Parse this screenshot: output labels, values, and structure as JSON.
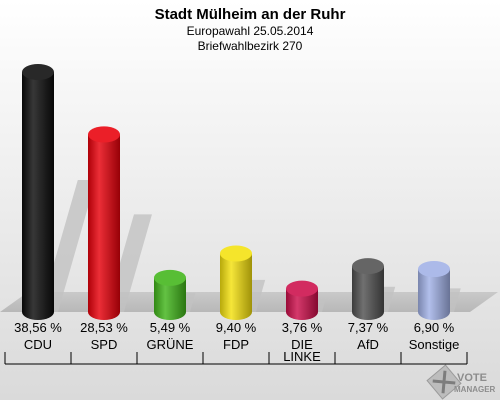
{
  "chart_data": {
    "type": "bar",
    "title": "Stadt Mülheim an der Ruhr",
    "subtitle": "Europawahl 25.05.2014",
    "subtitle2": "Briefwahlbezirk 270",
    "categories": [
      "CDU",
      "SPD",
      "GRÜNE",
      "FDP",
      "DIE LINKE",
      "AfD",
      "Sonstige"
    ],
    "values": [
      38.56,
      28.53,
      5.49,
      9.4,
      3.76,
      7.37,
      6.9
    ],
    "value_labels": [
      "38,56 %",
      "28,53 %",
      "5,49 %",
      "9,40 %",
      "3,76 %",
      "7,37 %",
      "6,90 %"
    ],
    "colors": [
      "#0b0b0b",
      "#e8000b",
      "#41b51a",
      "#f4e10e",
      "#cc0e4a",
      "#505050",
      "#a1b1e6"
    ],
    "ylim": [
      0,
      38.56
    ],
    "grid": false,
    "legend": "none"
  },
  "logo": {
    "line1": "VOTE",
    "line2": "MANAGER"
  }
}
